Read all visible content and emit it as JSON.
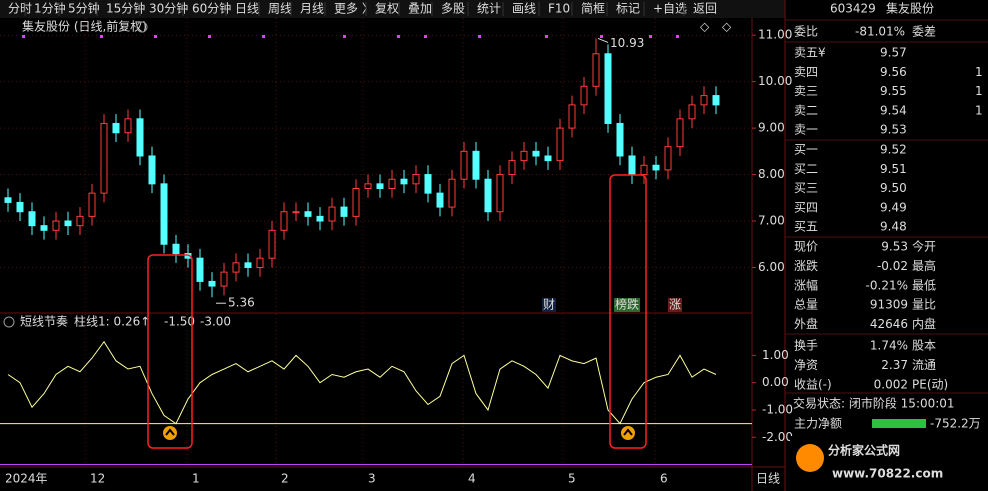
{
  "toolbar": [
    "分时",
    "1分钟",
    "5分钟",
    "15分钟",
    "30分钟",
    "60分钟",
    "日线",
    "周线",
    "月线",
    "更多 〉",
    "复权",
    "叠加",
    "多股",
    "统计",
    "画线",
    "F10",
    "简框",
    "标记",
    "+自选",
    "返回"
  ],
  "chart": {
    "title": "集友股份 (日线,前复权)",
    "ylim": [
      5.02,
      11.37
    ],
    "yticks": [
      {
        "value": 11,
        "label": "11.00"
      },
      {
        "value": 10,
        "label": "10.00"
      },
      {
        "value": 9,
        "label": "9.00"
      },
      {
        "value": 8,
        "label": "8.00"
      },
      {
        "value": 7,
        "label": "7.00"
      },
      {
        "value": 6,
        "label": "6.00"
      }
    ],
    "open": [
      7.5,
      7.4,
      7.2,
      6.9,
      6.8,
      7.0,
      6.9,
      7.1,
      7.6,
      9.1,
      8.9,
      9.2,
      8.4,
      7.8,
      6.5,
      6.3,
      6.2,
      5.7,
      5.6,
      5.9,
      6.1,
      6.0,
      6.2,
      6.8,
      7.2,
      7.2,
      7.1,
      7.0,
      7.3,
      7.1,
      7.7,
      7.8,
      7.7,
      7.9,
      7.8,
      8.0,
      7.6,
      7.3,
      7.9,
      8.5,
      7.9,
      7.2,
      8.0,
      8.3,
      8.5,
      8.4,
      8.3,
      9.0,
      9.5,
      9.9,
      10.6,
      9.1,
      8.4,
      8.0,
      8.2,
      8.1,
      8.6,
      9.2,
      9.5,
      9.7
    ],
    "high": [
      7.7,
      7.6,
      7.4,
      7.1,
      7.2,
      7.2,
      7.3,
      7.8,
      9.3,
      9.3,
      9.4,
      9.4,
      8.6,
      8.0,
      6.7,
      6.5,
      6.4,
      5.9,
      6.1,
      6.3,
      6.3,
      6.4,
      7.0,
      7.4,
      7.4,
      7.4,
      7.3,
      7.5,
      7.5,
      7.9,
      8.0,
      8.0,
      8.1,
      8.1,
      8.2,
      8.2,
      7.8,
      8.1,
      8.7,
      8.7,
      8.1,
      8.2,
      8.5,
      8.7,
      8.7,
      8.6,
      9.2,
      9.7,
      10.1,
      10.93,
      10.8,
      9.3,
      8.6,
      8.4,
      8.4,
      8.8,
      9.4,
      9.7,
      9.9,
      9.9
    ],
    "low": [
      7.2,
      7.0,
      6.7,
      6.6,
      6.6,
      6.7,
      6.7,
      6.9,
      7.4,
      8.7,
      8.7,
      8.2,
      7.6,
      6.3,
      6.1,
      6.0,
      5.5,
      5.36,
      5.4,
      5.7,
      5.8,
      5.8,
      6.0,
      6.6,
      7.0,
      6.9,
      6.8,
      6.8,
      6.9,
      6.9,
      7.5,
      7.5,
      7.5,
      7.6,
      7.6,
      7.4,
      7.1,
      7.1,
      7.7,
      7.7,
      7.0,
      7.0,
      7.8,
      8.1,
      8.2,
      8.1,
      8.1,
      8.8,
      9.3,
      9.7,
      8.9,
      8.2,
      7.8,
      7.8,
      7.9,
      7.9,
      8.4,
      9.0,
      9.3,
      9.3
    ],
    "close": [
      7.4,
      7.2,
      6.9,
      6.8,
      7.0,
      6.9,
      7.1,
      7.6,
      9.1,
      8.9,
      9.2,
      8.4,
      7.8,
      6.5,
      6.3,
      6.2,
      5.7,
      5.6,
      5.9,
      6.1,
      6.0,
      6.2,
      6.8,
      7.2,
      7.2,
      7.1,
      7.0,
      7.3,
      7.1,
      7.7,
      7.8,
      7.7,
      7.9,
      7.8,
      8.0,
      7.6,
      7.3,
      7.9,
      8.5,
      7.9,
      7.2,
      8.0,
      8.3,
      8.5,
      8.4,
      8.3,
      9.0,
      9.5,
      9.9,
      10.6,
      9.1,
      8.4,
      8.0,
      8.2,
      8.1,
      8.6,
      9.2,
      9.5,
      9.7,
      9.5
    ],
    "up_color": "#ff3c3c",
    "down_color": "#54ffff",
    "high_label": "10.93",
    "low_label": "5.36",
    "badges": [
      "财",
      "榜跌",
      "涨"
    ]
  },
  "indicator": {
    "name": "短线节奏",
    "bar_label": "柱线1: 0.26↑",
    "ylim": [
      -3.09,
      1.93
    ],
    "yticks": [
      {
        "value": 1,
        "label": "1.00"
      },
      {
        "value": 0,
        "label": "0.00"
      },
      {
        "value": -1,
        "label": "-1.00"
      },
      {
        "value": -2,
        "label": "-2.00"
      }
    ],
    "values": [
      0.3,
      0.0,
      -0.9,
      -0.4,
      0.3,
      0.6,
      0.4,
      0.9,
      1.5,
      0.8,
      0.5,
      0.6,
      -0.4,
      -1.2,
      -1.5,
      -0.6,
      0.0,
      0.3,
      0.5,
      0.7,
      0.4,
      0.6,
      0.8,
      0.5,
      1.0,
      0.6,
      0.0,
      0.3,
      0.2,
      0.4,
      0.5,
      0.2,
      0.6,
      0.4,
      -0.3,
      -0.8,
      -0.5,
      0.7,
      1.0,
      -0.4,
      -1.0,
      0.5,
      0.8,
      0.6,
      0.3,
      -0.2,
      1.0,
      0.8,
      0.7,
      0.9,
      -1.0,
      -1.5,
      -0.6,
      0.0,
      0.2,
      0.3,
      1.0,
      0.2,
      0.5,
      0.3
    ],
    "color": "#ffff9a",
    "lines": [
      {
        "value": -1.5,
        "label": "-1.50",
        "color": "#ffff54"
      },
      {
        "value": -3,
        "label": "-3.00",
        "color": "#c040ff"
      }
    ]
  },
  "time_axis": [
    "2024年",
    "12",
    "1",
    "2",
    "3",
    "4",
    "5",
    "6"
  ],
  "period": "日线",
  "quote": {
    "code": "603429",
    "name": "集友股份",
    "ratio": [
      "委比",
      "-81.01%",
      "委差"
    ],
    "sell": [
      [
        "卖五¥",
        "9.57",
        ""
      ],
      [
        "卖四",
        "9.56",
        "1"
      ],
      [
        "卖三",
        "9.55",
        "1"
      ],
      [
        "卖二",
        "9.54",
        "1"
      ],
      [
        "卖一",
        "9.53",
        ""
      ]
    ],
    "sell_colors": [
      "#ff5050",
      "#ff5050",
      "#e0e0e0",
      "#40d040",
      "#40d040"
    ],
    "buy": [
      [
        "买一",
        "9.52"
      ],
      [
        "买二",
        "9.51"
      ],
      [
        "买三",
        "9.50"
      ],
      [
        "买四",
        "9.49"
      ],
      [
        "买五",
        "9.48"
      ]
    ],
    "stats": [
      [
        "现价",
        "9.53",
        "今开"
      ],
      [
        "涨跌",
        "-0.02",
        "最高"
      ],
      [
        "涨幅",
        "-0.21%",
        "最低"
      ],
      [
        "总量",
        "91309",
        "量比"
      ],
      [
        "外盘",
        "42646",
        "内盘"
      ],
      [
        "换手",
        "1.74%",
        "股本"
      ],
      [
        "净资",
        "2.37",
        "流通"
      ],
      [
        "收益(-)",
        "0.002",
        "PE(动)"
      ]
    ],
    "stat_colors": [
      "#40d040",
      "#40d040",
      "#40d040",
      "#ffd700",
      "#ff5050",
      "#e0e0e0",
      "#e0e0e0",
      "#e0e0e0"
    ],
    "status": "交易状态: 闭市阶段 15:00:01",
    "flow": [
      "主力净额",
      "-752.2万"
    ]
  },
  "logo": [
    "分析家公式网",
    "www.70822.com"
  ]
}
